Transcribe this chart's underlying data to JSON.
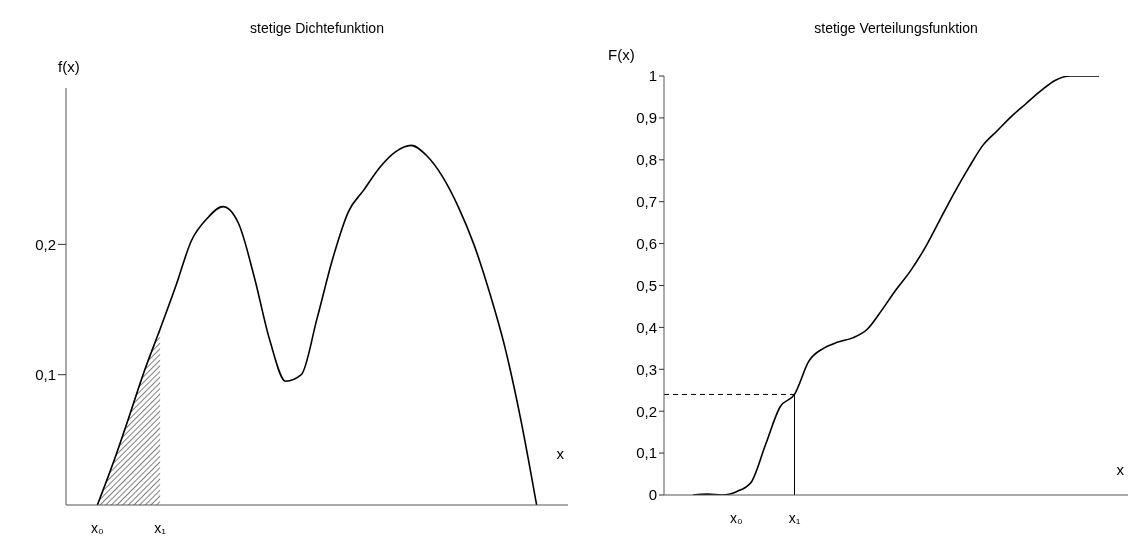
{
  "chart_data": [
    {
      "type": "line",
      "title": "stetige Dichtefunktion",
      "xlabel": "x",
      "ylabel": "f(x)",
      "categories": [
        null,
        null,
        "x₀",
        null,
        null,
        null,
        "x₁",
        null,
        null,
        null,
        null,
        null,
        null,
        null,
        null,
        null,
        null,
        null,
        null,
        null,
        null,
        null,
        null,
        null,
        null,
        null,
        null,
        null,
        null,
        null,
        null,
        null,
        null
      ],
      "series": [
        {
          "color": "#000000",
          "values": [
            null,
            null,
            0,
            0.032,
            0.067,
            0.103,
            0.135,
            0.168,
            0.203,
            0.22,
            0.229,
            0.216,
            0.175,
            0.126,
            0.095,
            0.1,
            0.143,
            0.189,
            0.225,
            0.242,
            0.259,
            0.271,
            0.276,
            0.268,
            0.252,
            0.229,
            0.2,
            0.163,
            0.12,
            0.065,
            0,
            null,
            null
          ]
        },
        {
          "type": "area",
          "color": "#808080",
          "values": [
            null,
            null,
            0,
            0.032,
            0.067,
            0.103,
            0.135,
            null,
            null,
            null,
            null,
            null,
            null,
            null,
            null,
            null,
            null,
            null,
            null,
            null,
            null,
            null,
            null,
            null,
            null,
            null,
            null,
            null,
            null,
            null,
            null,
            null,
            null
          ]
        }
      ],
      "ylim": [
        0,
        0.32
      ],
      "yticks": [
        {
          "value": 0.1,
          "label": "0,1"
        },
        {
          "value": 0.2,
          "label": "0,2"
        }
      ]
    },
    {
      "type": "line",
      "title": "stetige Verteilungsfunktion",
      "xlabel": "x",
      "ylabel": "F(x)",
      "categories": [
        null,
        null,
        null,
        null,
        null,
        "x₀",
        null,
        null,
        null,
        "x₁",
        null,
        null,
        null,
        null,
        null,
        null,
        null,
        null,
        null,
        null,
        null,
        null,
        null,
        null,
        null,
        null,
        null,
        null,
        null,
        null,
        null,
        null,
        null
      ],
      "series": [
        {
          "color": "#000000",
          "values": [
            null,
            null,
            0,
            0.002,
            0,
            0.008,
            0.03,
            0.12,
            0.21,
            0.24,
            0.32,
            0.35,
            0.365,
            0.375,
            0.395,
            0.44,
            0.49,
            0.535,
            0.59,
            0.655,
            0.72,
            0.78,
            0.835,
            0.87,
            0.905,
            0.935,
            0.965,
            0.99,
            1,
            1,
            1,
            null,
            null
          ]
        }
      ],
      "ylim": [
        0,
        1
      ],
      "yticks": [
        0,
        {
          "value": 0.1,
          "label": "0,1"
        },
        {
          "value": 0.2,
          "label": "0,2"
        },
        {
          "value": 0.3,
          "label": "0,3"
        },
        {
          "value": 0.4,
          "label": "0,4"
        },
        {
          "value": 0.5,
          "label": "0,5"
        },
        {
          "value": 0.6,
          "label": "0,6"
        },
        {
          "value": 0.7,
          "label": "0,7"
        },
        {
          "value": 0.8,
          "label": "0,8"
        },
        {
          "value": 0.9,
          "label": "0,9"
        },
        1
      ],
      "ref_lines": [
        {
          "axis": "y",
          "value": 0.24,
          "line_style": "dashed"
        },
        {
          "axis": "x",
          "value": "x₁"
        }
      ]
    }
  ]
}
